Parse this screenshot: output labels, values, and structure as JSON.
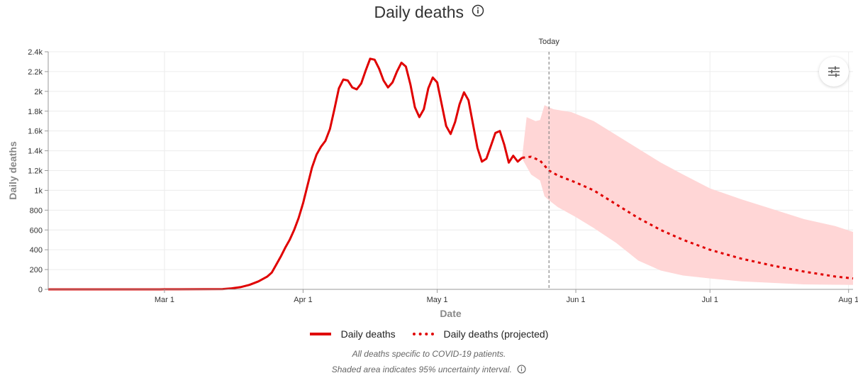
{
  "header": {
    "title": "Daily deaths"
  },
  "legend": {
    "actual": "Daily deaths",
    "projected": "Daily deaths (projected)"
  },
  "notes": {
    "line1": "All deaths specific to COVID-19 patients.",
    "line2": "Shaded area indicates 95% uncertainty interval."
  },
  "colors": {
    "line": "#e00000",
    "band": "#ffd6d6",
    "today": "#888888"
  },
  "icons": {
    "title_info": "info-icon",
    "settings": "sliders-icon",
    "note_info": "info-icon"
  },
  "chart_data": {
    "type": "line",
    "xlabel": "Date",
    "ylabel": "Daily deaths",
    "x_ticks": [
      "Mar 1",
      "Apr 1",
      "May 1",
      "Jun 1",
      "Jul 1",
      "Aug 1"
    ],
    "y_ticks": [
      "0",
      "200",
      "400",
      "600",
      "800",
      "1k",
      "1.2k",
      "1.4k",
      "1.6k",
      "1.8k",
      "2k",
      "2.2k",
      "2.4k"
    ],
    "ylim": [
      0,
      2400
    ],
    "xlim": [
      "2020-02-04",
      "2020-08-02"
    ],
    "grid": true,
    "today_label": "Today",
    "today_date": "2020-05-26",
    "series": [
      {
        "name": "Daily deaths",
        "style": "solid",
        "points": [
          [
            "2020-02-04",
            0
          ],
          [
            "2020-02-29",
            0
          ],
          [
            "2020-03-01",
            1
          ],
          [
            "2020-03-10",
            2
          ],
          [
            "2020-03-14",
            3
          ],
          [
            "2020-03-16",
            10
          ],
          [
            "2020-03-18",
            22
          ],
          [
            "2020-03-20",
            45
          ],
          [
            "2020-03-22",
            80
          ],
          [
            "2020-03-24",
            130
          ],
          [
            "2020-03-25",
            170
          ],
          [
            "2020-03-26",
            250
          ],
          [
            "2020-03-27",
            330
          ],
          [
            "2020-03-28",
            420
          ],
          [
            "2020-03-29",
            500
          ],
          [
            "2020-03-30",
            600
          ],
          [
            "2020-03-31",
            720
          ],
          [
            "2020-04-01",
            870
          ],
          [
            "2020-04-02",
            1050
          ],
          [
            "2020-04-03",
            1230
          ],
          [
            "2020-04-04",
            1360
          ],
          [
            "2020-04-05",
            1440
          ],
          [
            "2020-04-06",
            1500
          ],
          [
            "2020-04-07",
            1620
          ],
          [
            "2020-04-08",
            1820
          ],
          [
            "2020-04-09",
            2030
          ],
          [
            "2020-04-10",
            2120
          ],
          [
            "2020-04-11",
            2110
          ],
          [
            "2020-04-12",
            2040
          ],
          [
            "2020-04-13",
            2020
          ],
          [
            "2020-04-14",
            2080
          ],
          [
            "2020-04-15",
            2210
          ],
          [
            "2020-04-16",
            2330
          ],
          [
            "2020-04-17",
            2320
          ],
          [
            "2020-04-18",
            2230
          ],
          [
            "2020-04-19",
            2110
          ],
          [
            "2020-04-20",
            2040
          ],
          [
            "2020-04-21",
            2090
          ],
          [
            "2020-04-22",
            2200
          ],
          [
            "2020-04-23",
            2290
          ],
          [
            "2020-04-24",
            2250
          ],
          [
            "2020-04-25",
            2070
          ],
          [
            "2020-04-26",
            1840
          ],
          [
            "2020-04-27",
            1740
          ],
          [
            "2020-04-28",
            1820
          ],
          [
            "2020-04-29",
            2030
          ],
          [
            "2020-04-30",
            2140
          ],
          [
            "2020-05-01",
            2090
          ],
          [
            "2020-05-02",
            1870
          ],
          [
            "2020-05-03",
            1650
          ],
          [
            "2020-05-04",
            1570
          ],
          [
            "2020-05-05",
            1690
          ],
          [
            "2020-05-06",
            1870
          ],
          [
            "2020-05-07",
            1990
          ],
          [
            "2020-05-08",
            1910
          ],
          [
            "2020-05-09",
            1670
          ],
          [
            "2020-05-10",
            1430
          ],
          [
            "2020-05-11",
            1290
          ],
          [
            "2020-05-12",
            1320
          ],
          [
            "2020-05-13",
            1450
          ],
          [
            "2020-05-14",
            1580
          ],
          [
            "2020-05-15",
            1600
          ],
          [
            "2020-05-16",
            1460
          ],
          [
            "2020-05-17",
            1280
          ],
          [
            "2020-05-18",
            1350
          ],
          [
            "2020-05-19",
            1290
          ],
          [
            "2020-05-20",
            1330
          ]
        ]
      },
      {
        "name": "Daily deaths (projected)",
        "style": "dotted",
        "points": [
          [
            "2020-05-20",
            1330
          ],
          [
            "2020-05-22",
            1340
          ],
          [
            "2020-05-24",
            1300
          ],
          [
            "2020-05-26",
            1200
          ],
          [
            "2020-05-28",
            1150
          ],
          [
            "2020-06-01",
            1080
          ],
          [
            "2020-06-05",
            1000
          ],
          [
            "2020-06-10",
            860
          ],
          [
            "2020-06-15",
            720
          ],
          [
            "2020-06-20",
            600
          ],
          [
            "2020-06-25",
            500
          ],
          [
            "2020-07-01",
            400
          ],
          [
            "2020-07-08",
            310
          ],
          [
            "2020-07-15",
            240
          ],
          [
            "2020-07-22",
            180
          ],
          [
            "2020-07-29",
            130
          ],
          [
            "2020-08-02",
            110
          ]
        ]
      }
    ],
    "uncertainty_band": {
      "name": "95% uncertainty interval",
      "upper": [
        [
          "2020-05-20",
          1340
        ],
        [
          "2020-05-21",
          1740
        ],
        [
          "2020-05-23",
          1700
        ],
        [
          "2020-05-24",
          1710
        ],
        [
          "2020-05-25",
          1860
        ],
        [
          "2020-05-27",
          1820
        ],
        [
          "2020-05-31",
          1790
        ],
        [
          "2020-06-05",
          1700
        ],
        [
          "2020-06-10",
          1560
        ],
        [
          "2020-06-15",
          1420
        ],
        [
          "2020-06-20",
          1280
        ],
        [
          "2020-06-25",
          1160
        ],
        [
          "2020-07-01",
          1020
        ],
        [
          "2020-07-08",
          910
        ],
        [
          "2020-07-15",
          810
        ],
        [
          "2020-07-22",
          710
        ],
        [
          "2020-07-29",
          640
        ],
        [
          "2020-08-02",
          580
        ]
      ],
      "lower": [
        [
          "2020-08-02",
          45
        ],
        [
          "2020-07-22",
          50
        ],
        [
          "2020-07-08",
          80
        ],
        [
          "2020-07-01",
          110
        ],
        [
          "2020-06-25",
          140
        ],
        [
          "2020-06-20",
          190
        ],
        [
          "2020-06-15",
          290
        ],
        [
          "2020-06-10",
          470
        ],
        [
          "2020-06-05",
          620
        ],
        [
          "2020-06-01",
          730
        ],
        [
          "2020-05-28",
          830
        ],
        [
          "2020-05-26",
          900
        ],
        [
          "2020-05-25",
          940
        ],
        [
          "2020-05-24",
          1100
        ],
        [
          "2020-05-22",
          1160
        ],
        [
          "2020-05-20",
          1320
        ]
      ]
    }
  }
}
